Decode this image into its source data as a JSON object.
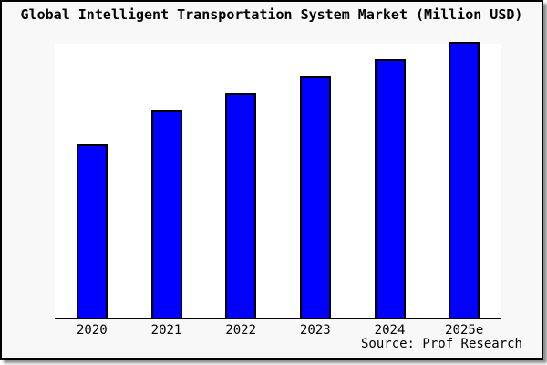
{
  "header": {
    "title": "Global Intelligent Transportation System Market (Million USD)"
  },
  "footer": {
    "source": "Source: Prof Research"
  },
  "colors": {
    "bar_fill": "#0000ff",
    "bar_border": "#000000",
    "card_background": "#f8f8f8",
    "plot_background": "#ffffff",
    "axis": "#000000",
    "text": "#000000",
    "shadow": "#777777"
  },
  "chart_data": {
    "type": "bar",
    "title": "Global Intelligent Transportation System Market (Million USD)",
    "categories": [
      "2020",
      "2021",
      "2022",
      "2023",
      "2024",
      "2025e"
    ],
    "values": [
      62.7,
      75.0,
      81.3,
      87.7,
      93.7,
      100.0
    ],
    "units": "relative index (no y-axis labels shown; 2025e = 100)",
    "xlabel": "",
    "ylabel": "",
    "ylim": [
      0,
      100
    ],
    "grid": false,
    "legend": false,
    "y_axis_visible": false,
    "x_axis_visible": true,
    "annotations": [
      "Source: Prof Research"
    ]
  }
}
